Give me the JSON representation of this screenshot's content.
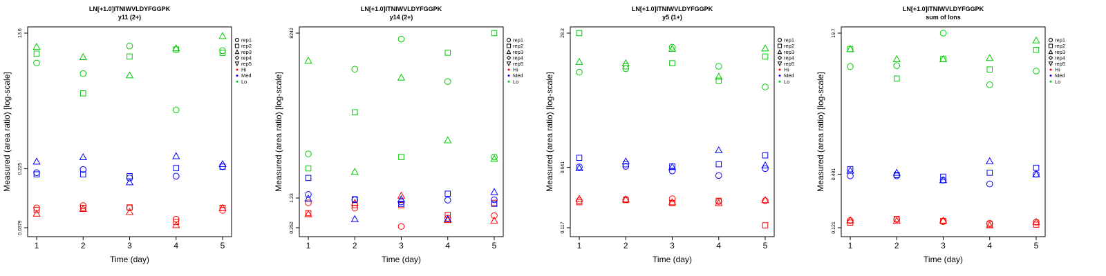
{
  "legend": {
    "entries": [
      "rep1",
      "rep2",
      "rep3",
      "rep4",
      "rep5",
      "Hi",
      "Med",
      "Lo"
    ],
    "shapes": [
      "circle",
      "square",
      "triangle-up",
      "diamond",
      "triangle-down",
      "dot",
      "dot",
      "dot"
    ],
    "colors": [
      "#000000",
      "#000000",
      "#000000",
      "#000000",
      "#000000",
      "#ff0000",
      "#0000ff",
      "#00cc00"
    ]
  },
  "colors": {
    "Hi": "#ff0000",
    "Med": "#0000ff",
    "Lo": "#00cc00"
  },
  "chart_data": [
    {
      "type": "scatter",
      "title": "LN[+1.0]ITNIWVLDYFGGPK",
      "subtitle": "y11 (2+)",
      "xlabel": "Time (day)",
      "ylabel": "Measured (area ratio) [log-scale]",
      "yscale": "log",
      "ylim": [
        0.0379,
        13.6
      ],
      "yticks": [
        0.0379,
        0.225,
        13.6
      ],
      "yticklabels": [
        "0.0379",
        "0.225",
        "13.6"
      ],
      "x": [
        1,
        2,
        3,
        4,
        5
      ],
      "series": [
        {
          "name": "rep1",
          "group": "Hi",
          "values": [
            0.069,
            0.074,
            0.069,
            0.049,
            0.064
          ]
        },
        {
          "name": "rep2",
          "group": "Hi",
          "values": [
            0.065,
            0.069,
            0.07,
            0.045,
            0.069
          ]
        },
        {
          "name": "rep3",
          "group": "Hi",
          "values": [
            0.058,
            0.067,
            0.061,
            0.041,
            0.069
          ]
        },
        {
          "name": "rep1",
          "group": "Med",
          "values": [
            0.2,
            0.22,
            0.17,
            0.18,
            0.24
          ]
        },
        {
          "name": "rep2",
          "group": "Med",
          "values": [
            0.19,
            0.19,
            0.18,
            0.23,
            0.24
          ]
        },
        {
          "name": "rep3",
          "group": "Med",
          "values": [
            0.28,
            0.32,
            0.15,
            0.33,
            0.26
          ]
        },
        {
          "name": "rep1",
          "group": "Lo",
          "values": [
            5.5,
            4.0,
            9.2,
            1.33,
            8.0
          ]
        },
        {
          "name": "rep2",
          "group": "Lo",
          "values": [
            7.3,
            2.2,
            6.7,
            8.3,
            7.5
          ]
        },
        {
          "name": "rep3",
          "group": "Lo",
          "values": [
            9.0,
            6.6,
            3.8,
            8.6,
            12.5
          ]
        }
      ]
    },
    {
      "type": "scatter",
      "title": "LN[+1.0]ITNIWVLDYFGGPK",
      "subtitle": "y14 (2+)",
      "xlabel": "Time (day)",
      "ylabel": "Measured (area ratio) [log-scale]",
      "yscale": "log",
      "ylim": [
        0.252,
        8242
      ],
      "yticks": [
        0.252,
        1.23,
        8242
      ],
      "yticklabels": [
        "0.252",
        "1.23",
        "8242"
      ],
      "x": [
        1,
        2,
        3,
        4,
        5
      ],
      "series": [
        {
          "name": "rep1",
          "group": "Hi",
          "values": [
            0.95,
            0.72,
            0.27,
            0.42,
            0.48
          ]
        },
        {
          "name": "rep2",
          "group": "Hi",
          "values": [
            0.55,
            0.84,
            0.84,
            0.5,
            0.95
          ]
        },
        {
          "name": "rep3",
          "group": "Hi",
          "values": [
            0.52,
            0.95,
            1.4,
            0.38,
            0.37
          ]
        },
        {
          "name": "rep1",
          "group": "Med",
          "values": [
            1.48,
            1.12,
            1.0,
            1.1,
            1.12
          ]
        },
        {
          "name": "rep2",
          "group": "Med",
          "values": [
            3.6,
            1.15,
            0.9,
            1.55,
            0.9
          ]
        },
        {
          "name": "rep3",
          "group": "Med",
          "values": [
            1.2,
            0.4,
            1.15,
            0.4,
            1.7
          ]
        },
        {
          "name": "rep1",
          "group": "Lo",
          "values": [
            13.0,
            1200,
            6000,
            620,
            11.0
          ]
        },
        {
          "name": "rep2",
          "group": "Lo",
          "values": [
            6.0,
            120,
            11.0,
            2900,
            8242
          ]
        },
        {
          "name": "rep3",
          "group": "Lo",
          "values": [
            1900,
            5.0,
            770,
            27.0,
            10.0
          ]
        }
      ]
    },
    {
      "type": "scatter",
      "title": "LN[+1.0]ITNIWVLDYFGGPK",
      "subtitle": "y5 (1+)",
      "xlabel": "Time (day)",
      "ylabel": "Measured (area ratio) [log-scale]",
      "yscale": "log",
      "ylim": [
        0.117,
        28.3
      ],
      "yticks": [
        0.117,
        0.641,
        28.3
      ],
      "yticklabels": [
        "0.117",
        "0.641",
        "28.3"
      ],
      "x": [
        1,
        2,
        3,
        4,
        5
      ],
      "series": [
        {
          "name": "rep1",
          "group": "Hi",
          "values": [
            0.25,
            0.26,
            0.265,
            0.245,
            0.25
          ]
        },
        {
          "name": "rep2",
          "group": "Hi",
          "values": [
            0.24,
            0.255,
            0.235,
            0.25,
            0.125
          ]
        },
        {
          "name": "rep3",
          "group": "Hi",
          "values": [
            0.265,
            0.26,
            0.24,
            0.235,
            0.255
          ]
        },
        {
          "name": "rep1",
          "group": "Med",
          "values": [
            0.65,
            0.66,
            0.58,
            0.51,
            0.62
          ]
        },
        {
          "name": "rep2",
          "group": "Med",
          "values": [
            0.84,
            0.7,
            0.66,
            0.7,
            0.9
          ]
        },
        {
          "name": "rep3",
          "group": "Med",
          "values": [
            0.63,
            0.76,
            0.65,
            1.04,
            0.68
          ]
        },
        {
          "name": "rep1",
          "group": "Lo",
          "values": [
            9.4,
            10.4,
            19.0,
            11.1,
            6.2
          ]
        },
        {
          "name": "rep2",
          "group": "Lo",
          "values": [
            28.3,
            11.1,
            12.1,
            7.4,
            14.6
          ]
        },
        {
          "name": "rep3",
          "group": "Lo",
          "values": [
            12.6,
            12.1,
            18.2,
            8.3,
            18.4
          ]
        }
      ]
    },
    {
      "type": "scatter",
      "title": "LN[+1.0]ITNIWVLDYFGGPK",
      "subtitle": "sum of Ions",
      "xlabel": "Time (day)",
      "ylabel": "Measured (area ratio) [log-scale]",
      "yscale": "log",
      "ylim": [
        0.121,
        19.7
      ],
      "yticks": [
        0.121,
        0.491,
        19.7
      ],
      "yticklabels": [
        "0.121",
        "0.491",
        "19.7"
      ],
      "x": [
        1,
        2,
        3,
        4,
        5
      ],
      "series": [
        {
          "name": "rep1",
          "group": "Hi",
          "values": [
            0.146,
            0.15,
            0.142,
            0.136,
            0.14
          ]
        },
        {
          "name": "rep2",
          "group": "Hi",
          "values": [
            0.138,
            0.152,
            0.144,
            0.132,
            0.131
          ]
        },
        {
          "name": "rep3",
          "group": "Hi",
          "values": [
            0.147,
            0.145,
            0.146,
            0.129,
            0.141
          ]
        },
        {
          "name": "rep1",
          "group": "Med",
          "values": [
            0.47,
            0.47,
            0.42,
            0.38,
            0.49
          ]
        },
        {
          "name": "rep2",
          "group": "Med",
          "values": [
            0.56,
            0.48,
            0.46,
            0.51,
            0.58
          ]
        },
        {
          "name": "rep3",
          "group": "Med",
          "values": [
            0.54,
            0.51,
            0.42,
            0.69,
            0.49
          ]
        },
        {
          "name": "rep1",
          "group": "Lo",
          "values": [
            8.2,
            8.4,
            19.7,
            5.1,
            7.3
          ]
        },
        {
          "name": "rep2",
          "group": "Lo",
          "values": [
            13.0,
            6.0,
            10.0,
            7.6,
            12.7
          ]
        },
        {
          "name": "rep3",
          "group": "Lo",
          "values": [
            13.0,
            10.0,
            10.0,
            10.3,
            16.3
          ]
        }
      ]
    }
  ]
}
